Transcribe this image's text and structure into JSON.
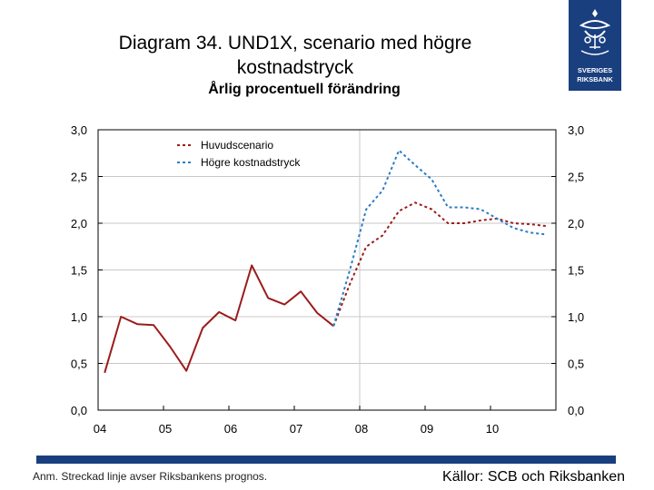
{
  "header": {
    "title_line1": "Diagram 34. UND1X, scenario med högre",
    "title_line2": "kostnadstryck",
    "subtitle": "Årlig procentuell förändring",
    "logo_line1": "SVERIGES",
    "logo_line2": "RIKSBANK"
  },
  "footer": {
    "note": "Anm. Streckad linje avser Riksbankens prognos.",
    "source": "Källor: SCB och Riksbanken"
  },
  "colors": {
    "actual": "#9b1b1b",
    "main_scenario": "#9b1b1b",
    "high_cost": "#2e7bc4",
    "brand": "#1a3f7f",
    "grid": "#c8c8c8"
  },
  "chart_data": {
    "type": "line",
    "title": "Diagram 34. UND1X, scenario med högre kostnadstryck",
    "subtitle": "Årlig procentuell förändring",
    "xlabel": "",
    "ylabel": "",
    "x_ticks": [
      "04",
      "05",
      "06",
      "07",
      "08",
      "09",
      "10"
    ],
    "xlim": [
      2004,
      2011
    ],
    "ylim": [
      0,
      3
    ],
    "y_ticks": [
      "0,0",
      "0,5",
      "1,0",
      "1,5",
      "2,0",
      "2,5",
      "3,0"
    ],
    "legend": [
      "Huvudscenario",
      "Högre kostnadstryck"
    ],
    "legend_position": "top-left",
    "forecast_start": 2008,
    "series": [
      {
        "name": "Utfall",
        "style": "solid",
        "x": [
          2004.1,
          2004.35,
          2004.6,
          2004.85,
          2005.1,
          2005.35,
          2005.6,
          2005.85,
          2006.1,
          2006.35,
          2006.6,
          2006.85,
          2007.1,
          2007.35,
          2007.6,
          2007.85
        ],
        "values": [
          0.4,
          1.0,
          0.92,
          0.91,
          0.68,
          0.42,
          0.88,
          1.05,
          0.96,
          1.55,
          1.2,
          1.13,
          1.27,
          1.04,
          0.9,
          null
        ]
      },
      {
        "name": "Huvudscenario",
        "style": "dashed",
        "x": [
          2007.6,
          2007.85,
          2008.1,
          2008.35,
          2008.6,
          2008.85,
          2009.1,
          2009.35,
          2009.6,
          2009.85,
          2010.1,
          2010.35,
          2010.6,
          2010.85
        ],
        "values": [
          0.9,
          1.35,
          1.75,
          1.87,
          2.13,
          2.22,
          2.15,
          2.0,
          2.0,
          2.03,
          2.05,
          2.0,
          1.99,
          1.97
        ]
      },
      {
        "name": "Högre kostnadstryck",
        "style": "dashed",
        "x": [
          2007.6,
          2007.85,
          2008.1,
          2008.35,
          2008.6,
          2008.85,
          2009.1,
          2009.35,
          2009.6,
          2009.85,
          2010.1,
          2010.35,
          2010.6,
          2010.85
        ],
        "values": [
          0.9,
          1.5,
          2.15,
          2.35,
          2.78,
          2.62,
          2.47,
          2.17,
          2.17,
          2.15,
          2.05,
          1.95,
          1.9,
          1.88
        ]
      }
    ]
  }
}
